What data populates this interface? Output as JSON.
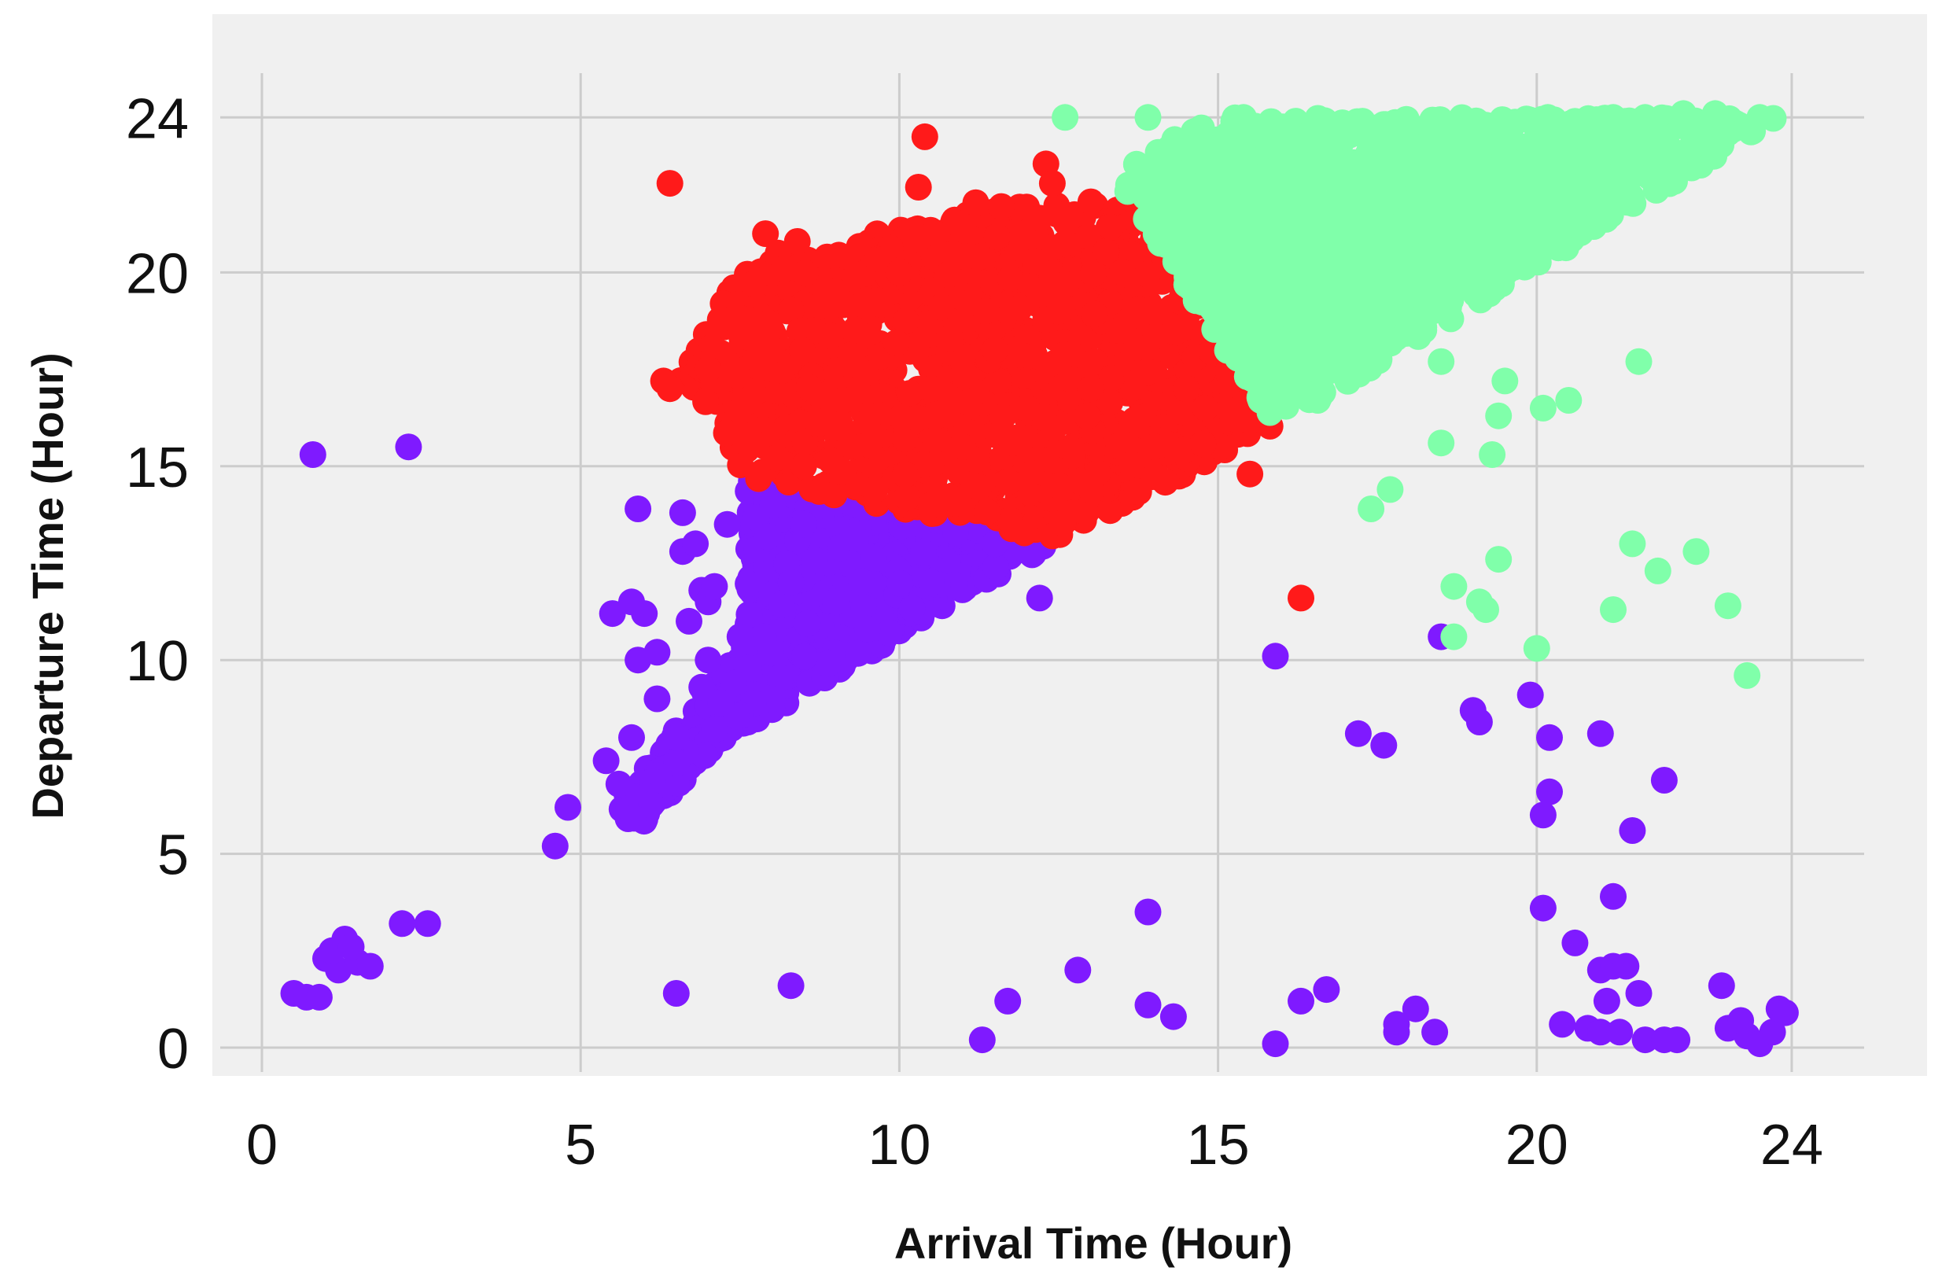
{
  "chart_data": {
    "type": "scatter",
    "title": "",
    "xlabel": "Arrival Time (Hour)",
    "ylabel": "Departure Time (Hour)",
    "xlim": [
      -1,
      25
    ],
    "ylim": [
      -1,
      26
    ],
    "x_ticks": [
      0,
      5,
      10,
      15,
      20,
      24
    ],
    "y_ticks": [
      0,
      5,
      10,
      15,
      20,
      24
    ],
    "x_tick_labels": [
      "0",
      "5",
      "10",
      "15",
      "20",
      "24"
    ],
    "y_tick_labels": [
      "0",
      "5",
      "10",
      "15",
      "20",
      "24"
    ],
    "grid": true,
    "legend": "none",
    "background_color": "#f0f0f0",
    "series": [
      {
        "color": "#7f1aff",
        "clusters": [
          {
            "polygon": [
              [
                7.6,
                14.7
              ],
              [
                12.5,
                13.1
              ],
              [
                5.6,
                6.3
              ],
              [
                7.6,
                10.5
              ]
            ],
            "count": 700,
            "fill": [
              [
                8.0,
                9.0
              ],
              [
                8.3,
                12.0
              ],
              [
                9.0,
                11.5
              ],
              [
                10.5,
                12.0
              ],
              [
                11.5,
                13.0
              ],
              [
                7.0,
                8.8
              ],
              [
                6.5,
                7.5
              ],
              [
                9.5,
                10.8
              ],
              [
                8.5,
                13.5
              ]
            ]
          },
          {
            "polygon": [
              [
                5.4,
                5.8
              ],
              [
                6.5,
                7.6
              ],
              [
                7.8,
                9.0
              ],
              [
                6.0,
                5.8
              ]
            ],
            "count": 120
          }
        ],
        "points": [
          [
            0.5,
            1.4
          ],
          [
            0.7,
            1.3
          ],
          [
            0.9,
            1.3
          ],
          [
            1.0,
            2.3
          ],
          [
            1.2,
            2.0
          ],
          [
            1.3,
            2.8
          ],
          [
            1.5,
            2.2
          ],
          [
            1.7,
            2.1
          ],
          [
            1.1,
            2.5
          ],
          [
            1.4,
            2.6
          ],
          [
            0.8,
            15.3
          ],
          [
            2.3,
            15.5
          ],
          [
            2.2,
            3.2
          ],
          [
            2.6,
            3.2
          ],
          [
            4.6,
            5.2
          ],
          [
            4.8,
            6.2
          ],
          [
            5.4,
            7.4
          ],
          [
            5.6,
            6.8
          ],
          [
            5.8,
            8.0
          ],
          [
            5.9,
            10.0
          ],
          [
            5.5,
            11.2
          ],
          [
            5.8,
            11.5
          ],
          [
            6.0,
            11.2
          ],
          [
            6.2,
            10.2
          ],
          [
            6.2,
            9.0
          ],
          [
            6.5,
            8.0
          ],
          [
            5.9,
            13.9
          ],
          [
            6.6,
            13.8
          ],
          [
            6.6,
            12.8
          ],
          [
            6.8,
            13.0
          ],
          [
            6.9,
            11.8
          ],
          [
            7.0,
            11.5
          ],
          [
            7.1,
            11.9
          ],
          [
            6.7,
            11.0
          ],
          [
            6.9,
            9.3
          ],
          [
            7.4,
            9.4
          ],
          [
            7.2,
            8.9
          ],
          [
            7.0,
            10.0
          ],
          [
            7.5,
            10.6
          ],
          [
            7.3,
            13.5
          ],
          [
            6.5,
            1.4
          ],
          [
            8.3,
            1.6
          ],
          [
            12.2,
            11.6
          ],
          [
            11.3,
            0.2
          ],
          [
            11.7,
            1.2
          ],
          [
            12.8,
            2.0
          ],
          [
            13.9,
            3.5
          ],
          [
            13.9,
            1.1
          ],
          [
            14.3,
            0.8
          ],
          [
            15.9,
            0.1
          ],
          [
            16.3,
            1.2
          ],
          [
            16.7,
            1.5
          ],
          [
            17.8,
            0.6
          ],
          [
            17.8,
            0.4
          ],
          [
            18.1,
            1.0
          ],
          [
            18.4,
            0.4
          ],
          [
            15.9,
            10.1
          ],
          [
            17.2,
            8.1
          ],
          [
            17.6,
            7.8
          ],
          [
            18.5,
            10.6
          ],
          [
            19.0,
            8.7
          ],
          [
            19.1,
            8.4
          ],
          [
            19.9,
            9.1
          ],
          [
            20.2,
            8.0
          ],
          [
            20.2,
            6.6
          ],
          [
            20.1,
            6.0
          ],
          [
            21.0,
            8.1
          ],
          [
            21.5,
            5.6
          ],
          [
            22.0,
            6.9
          ],
          [
            20.1,
            3.6
          ],
          [
            20.6,
            2.7
          ],
          [
            21.2,
            3.9
          ],
          [
            21.0,
            2.0
          ],
          [
            21.2,
            2.1
          ],
          [
            21.4,
            2.1
          ],
          [
            21.6,
            1.4
          ],
          [
            21.1,
            1.2
          ],
          [
            20.4,
            0.6
          ],
          [
            20.8,
            0.5
          ],
          [
            21.0,
            0.4
          ],
          [
            21.3,
            0.4
          ],
          [
            21.7,
            0.2
          ],
          [
            22.0,
            0.2
          ],
          [
            22.2,
            0.2
          ],
          [
            22.9,
            1.6
          ],
          [
            23.0,
            0.5
          ],
          [
            23.3,
            0.3
          ],
          [
            23.5,
            0.1
          ],
          [
            23.7,
            0.4
          ],
          [
            23.8,
            1.0
          ],
          [
            23.9,
            0.9
          ],
          [
            23.2,
            0.7
          ]
        ]
      },
      {
        "color": "#ff1a1a",
        "clusters": [
          {
            "polygon": [
              [
                7.6,
                14.7
              ],
              [
                12.5,
                13.1
              ],
              [
                15.9,
                16.0
              ],
              [
                13.9,
                22.0
              ],
              [
                10.5,
                21.5
              ],
              [
                7.5,
                20.0
              ],
              [
                6.5,
                17.0
              ],
              [
                7.2,
                16.0
              ]
            ],
            "count": 1300,
            "fill": [
              [
                9.0,
                19.5
              ],
              [
                10.0,
                20.0
              ],
              [
                10.5,
                17.0
              ],
              [
                11.5,
                18.0
              ],
              [
                12.5,
                19.0
              ],
              [
                13.0,
                17.0
              ],
              [
                14.5,
                17.0
              ],
              [
                9.0,
                16.0
              ],
              [
                8.0,
                18.0
              ],
              [
                11.0,
                15.5
              ],
              [
                12.0,
                16.5
              ],
              [
                13.5,
                20.0
              ],
              [
                10.5,
                14.0
              ],
              [
                12.5,
                14.5
              ],
              [
                14.0,
                15.5
              ],
              [
                8.5,
                15.0
              ]
            ]
          }
        ],
        "points": [
          [
            6.4,
            22.3
          ],
          [
            10.4,
            23.5
          ],
          [
            12.3,
            22.8
          ],
          [
            12.4,
            22.3
          ],
          [
            12.2,
            21.4
          ],
          [
            10.3,
            22.2
          ],
          [
            11.2,
            21.8
          ],
          [
            11.6,
            21.7
          ],
          [
            8.4,
            20.8
          ],
          [
            8.1,
            20.5
          ],
          [
            7.9,
            21.0
          ],
          [
            8.2,
            20.1
          ],
          [
            7.1,
            18.0
          ],
          [
            7.0,
            17.5
          ],
          [
            6.3,
            17.2
          ],
          [
            6.4,
            17.0
          ],
          [
            7.4,
            17.5
          ],
          [
            15.5,
            14.8
          ],
          [
            16.3,
            11.6
          ],
          [
            15.3,
            16.2
          ],
          [
            14.8,
            16.5
          ]
        ]
      },
      {
        "color": "#80ffaa",
        "clusters": [
          {
            "polygon": [
              [
                13.5,
                22.3
              ],
              [
                15.9,
                16.0
              ],
              [
                23.8,
                24.0
              ],
              [
                21.0,
                24.0
              ],
              [
                15.0,
                24.0
              ],
              [
                13.8,
                23.0
              ]
            ],
            "count": 1300,
            "fill": [
              [
                16.0,
                19.0
              ],
              [
                17.0,
                20.5
              ],
              [
                18.0,
                21.0
              ],
              [
                19.0,
                22.0
              ],
              [
                20.0,
                22.5
              ],
              [
                21.0,
                23.0
              ],
              [
                22.0,
                23.2
              ],
              [
                23.0,
                23.6
              ],
              [
                15.0,
                20.5
              ],
              [
                14.5,
                22.0
              ],
              [
                17.0,
                18.5
              ],
              [
                18.5,
                19.8
              ],
              [
                16.5,
                21.8
              ],
              [
                19.5,
                23.0
              ]
            ]
          }
        ],
        "points": [
          [
            12.6,
            24.0
          ],
          [
            13.9,
            24.0
          ],
          [
            14.6,
            23.2
          ],
          [
            15.3,
            23.0
          ],
          [
            15.4,
            24.0
          ],
          [
            16.1,
            23.0
          ],
          [
            16.9,
            22.8
          ],
          [
            17.6,
            23.0
          ],
          [
            17.8,
            22.8
          ],
          [
            18.0,
            23.8
          ],
          [
            18.4,
            22.4
          ],
          [
            19.2,
            23.8
          ],
          [
            19.7,
            22.8
          ],
          [
            20.6,
            23.9
          ],
          [
            21.2,
            24.0
          ],
          [
            21.7,
            24.0
          ],
          [
            22.3,
            24.1
          ],
          [
            22.8,
            24.1
          ],
          [
            23.5,
            24.0
          ],
          [
            18.5,
            17.7
          ],
          [
            19.4,
            16.3
          ],
          [
            19.5,
            17.2
          ],
          [
            20.1,
            16.5
          ],
          [
            20.5,
            16.7
          ],
          [
            21.6,
            17.7
          ],
          [
            18.5,
            15.6
          ],
          [
            19.3,
            15.3
          ],
          [
            17.4,
            13.9
          ],
          [
            17.7,
            14.4
          ],
          [
            19.4,
            12.6
          ],
          [
            18.7,
            11.9
          ],
          [
            19.1,
            11.5
          ],
          [
            19.2,
            11.3
          ],
          [
            18.7,
            10.6
          ],
          [
            21.5,
            13.0
          ],
          [
            21.9,
            12.3
          ],
          [
            22.5,
            12.8
          ],
          [
            21.2,
            11.3
          ],
          [
            23.0,
            11.4
          ],
          [
            23.3,
            9.6
          ],
          [
            20.0,
            10.3
          ]
        ]
      }
    ]
  }
}
